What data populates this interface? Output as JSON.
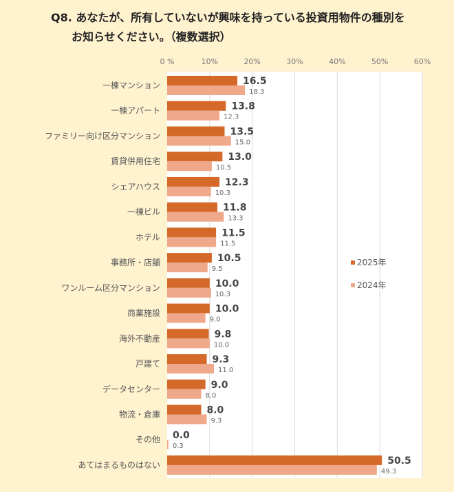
{
  "title_line1": "Q8. あなたが、所有していないが興味を持っている投資用物件の種別を",
  "title_line2": "お知らせください。（複数選択）",
  "chart_data": {
    "type": "bar",
    "orientation": "horizontal",
    "categories": [
      "一棟マンション",
      "一棟アパート",
      "ファミリー向け区分マンション",
      "賃貸併用住宅",
      "シェアハウス",
      "一棟ビル",
      "ホテル",
      "事務所・店舗",
      "ワンルーム区分マンション",
      "商業施設",
      "海外不動産",
      "戸建て",
      "データセンター",
      "物流・倉庫",
      "その他",
      "あてはまるものはない"
    ],
    "series": [
      {
        "name": "2025年",
        "color": "#d4692a",
        "values": [
          16.5,
          13.8,
          13.5,
          13.0,
          12.3,
          11.8,
          11.5,
          10.5,
          10.0,
          10.0,
          9.8,
          9.3,
          9.0,
          8.0,
          0.0,
          50.5
        ],
        "labels": [
          "16.5",
          "13.8",
          "13.5",
          "13.0",
          "12.3",
          "11.8",
          "11.5",
          "10.5",
          "10.0",
          "10.0",
          "9.8",
          "9.3",
          "9.0",
          "8.0",
          "0.0",
          "50.5"
        ]
      },
      {
        "name": "2024年",
        "color": "#f0a88a",
        "values": [
          18.3,
          12.3,
          15.0,
          10.5,
          10.3,
          13.3,
          11.5,
          9.5,
          10.3,
          9.0,
          10.0,
          11.0,
          8.0,
          9.3,
          0.3,
          49.3
        ],
        "labels": [
          "18.3",
          "12.3",
          "15.0",
          "10.5",
          "10.3",
          "13.3",
          "11.5",
          "9.5",
          "10.3",
          "9.0",
          "10.0",
          "11.0",
          "8.0",
          "9.3",
          "0.3",
          "49.3"
        ]
      }
    ],
    "xlim": [
      0,
      60
    ],
    "tick_labels": [
      "0 %",
      "10%",
      "20%",
      "30%",
      "40%",
      "50%",
      "60%"
    ],
    "grid": true,
    "legend": "right",
    "axis_position": "top"
  }
}
